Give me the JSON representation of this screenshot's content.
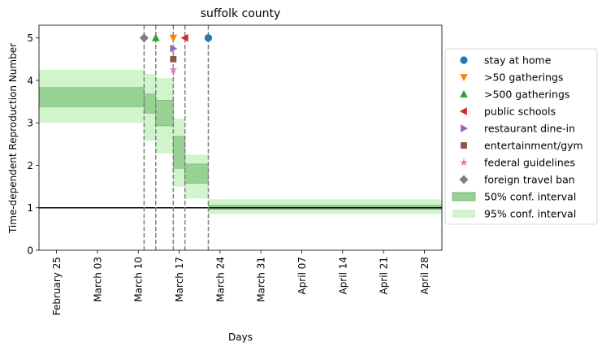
{
  "chart_data": {
    "type": "step",
    "title": "suffolk county",
    "xlabel": "Days",
    "ylabel": "Time-dependent Reproduction Number",
    "x_ticks": [
      "February 25",
      "March 03",
      "March 10",
      "March 17",
      "March 24",
      "March 31",
      "April 07",
      "April 14",
      "April 21",
      "April 28"
    ],
    "y_ticks": [
      "0",
      "1",
      "2",
      "3",
      "4",
      "5"
    ],
    "xlim": [
      "2020-02-22",
      "2020-05-01"
    ],
    "ylim": [
      0,
      5.3
    ],
    "reference_line_y": 1,
    "ci50": [
      {
        "start": "2020-02-22",
        "end": "2020-03-11",
        "low": 3.38,
        "high": 3.83
      },
      {
        "start": "2020-03-11",
        "end": "2020-03-13",
        "low": 3.23,
        "high": 3.68
      },
      {
        "start": "2020-03-13",
        "end": "2020-03-16",
        "low": 2.93,
        "high": 3.53
      },
      {
        "start": "2020-03-16",
        "end": "2020-03-18",
        "low": 1.93,
        "high": 2.68
      },
      {
        "start": "2020-03-18",
        "end": "2020-03-22",
        "low": 1.58,
        "high": 2.03
      },
      {
        "start": "2020-03-22",
        "end": "2020-05-01",
        "low": 0.96,
        "high": 1.06
      }
    ],
    "ci95": [
      {
        "start": "2020-02-22",
        "end": "2020-03-11",
        "low": 3.0,
        "high": 4.25
      },
      {
        "start": "2020-03-11",
        "end": "2020-03-13",
        "low": 2.58,
        "high": 4.15
      },
      {
        "start": "2020-03-13",
        "end": "2020-03-16",
        "low": 2.28,
        "high": 4.05
      },
      {
        "start": "2020-03-16",
        "end": "2020-03-18",
        "low": 1.5,
        "high": 3.1
      },
      {
        "start": "2020-03-18",
        "end": "2020-03-22",
        "low": 1.22,
        "high": 2.25
      },
      {
        "start": "2020-03-22",
        "end": "2020-05-01",
        "low": 0.85,
        "high": 1.2
      }
    ],
    "interventions": [
      {
        "name": "stay at home",
        "date": "2020-03-22",
        "y": 5.0,
        "color": "#1f77b4",
        "marker": "circle"
      },
      {
        "name": ">50 gatherings",
        "date": "2020-03-16",
        "y": 5.0,
        "color": "#ff7f0e",
        "marker": "triangle-down"
      },
      {
        "name": ">500 gatherings",
        "date": "2020-03-13",
        "y": 5.0,
        "color": "#2ca02c",
        "marker": "triangle-up"
      },
      {
        "name": "public schools",
        "date": "2020-03-18",
        "y": 5.0,
        "color": "#d62728",
        "marker": "triangle-left"
      },
      {
        "name": "restaurant dine-in",
        "date": "2020-03-16",
        "y": 4.75,
        "color": "#9467bd",
        "marker": "triangle-right"
      },
      {
        "name": "entertainment/gym",
        "date": "2020-03-16",
        "y": 4.5,
        "color": "#8c564b",
        "marker": "square"
      },
      {
        "name": "federal guidelines",
        "date": "2020-03-16",
        "y": 4.25,
        "color": "#e377c2",
        "marker": "star"
      },
      {
        "name": "foreign travel ban",
        "date": "2020-03-11",
        "y": 5.0,
        "color": "#7f7f7f",
        "marker": "diamond"
      }
    ],
    "legend_placement": "outside-right",
    "legend": [
      {
        "label": "stay at home",
        "color": "#1f77b4",
        "marker": "circle"
      },
      {
        "label": ">50 gatherings",
        "color": "#ff7f0e",
        "marker": "triangle-down"
      },
      {
        "label": ">500 gatherings",
        "color": "#2ca02c",
        "marker": "triangle-up"
      },
      {
        "label": "public schools",
        "color": "#d62728",
        "marker": "triangle-left"
      },
      {
        "label": "restaurant dine-in",
        "color": "#9467bd",
        "marker": "triangle-right"
      },
      {
        "label": "entertainment/gym",
        "color": "#8c564b",
        "marker": "square"
      },
      {
        "label": "federal guidelines",
        "color": "#e377c2",
        "marker": "star"
      },
      {
        "label": "foreign travel ban",
        "color": "#7f7f7f",
        "marker": "diamond"
      },
      {
        "label": "50% conf. interval",
        "color": "#98d194",
        "marker": "patch50"
      },
      {
        "label": "95% conf. interval",
        "color": "#d0f5cc",
        "marker": "patch95"
      }
    ],
    "colors": {
      "ci50": "#98d194",
      "ci95": "#d0f5cc",
      "vline": "#7f7f7f",
      "refline": "#000000"
    }
  }
}
